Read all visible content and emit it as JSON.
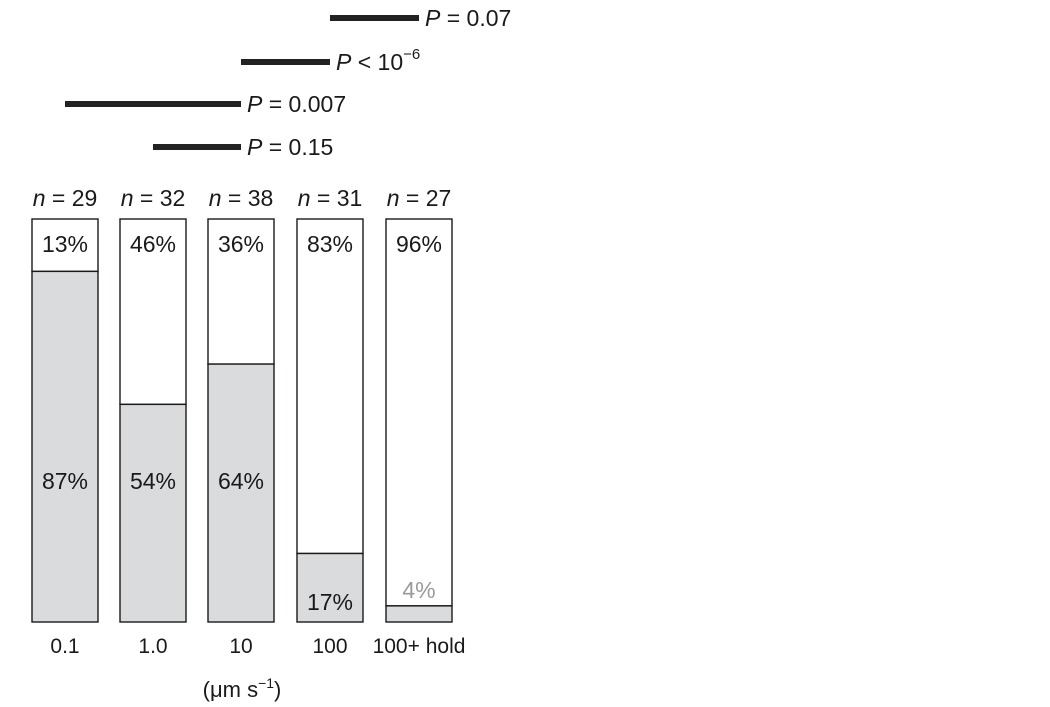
{
  "chart_data": {
    "type": "bar",
    "stacked": true,
    "normalized_percent": true,
    "categories": [
      "0.1",
      "1.0",
      "10",
      "100",
      "100+ hold"
    ],
    "n": [
      "n = 29",
      "n = 32",
      "n = 38",
      "n = 31",
      "n = 27"
    ],
    "series": [
      {
        "values": [
          87,
          54,
          64,
          17,
          4
        ],
        "labels": [
          "87%",
          "54%",
          "64%",
          "17%",
          "4%"
        ],
        "color": "#d9dbdd"
      },
      {
        "values": [
          13,
          46,
          36,
          83,
          96
        ],
        "labels": [
          "13%",
          "46%",
          "36%",
          "83%",
          "96%"
        ],
        "color": "#ffffff"
      }
    ],
    "xlabel_unit": "(μm s",
    "xlabel_exponent": "−1",
    "xlabel_close": ")",
    "comparisons": [
      {
        "from": 3,
        "to": 4,
        "p_prefix": "P",
        "p_text": " = 0.07",
        "p_exponent": ""
      },
      {
        "from": 2,
        "to": 3,
        "p_prefix": "P",
        "p_text": " < 10",
        "p_exponent": "−6"
      },
      {
        "from": 0,
        "to": 2,
        "p_prefix": "P",
        "p_text": " = 0.007",
        "p_exponent": ""
      },
      {
        "from": 1,
        "to": 2,
        "p_prefix": "P",
        "p_text": " = 0.15",
        "p_exponent": ""
      }
    ],
    "small_value_label_color": "#9a9a9a",
    "line_color": "#1a1a1a",
    "comparison_bar_color": "#222222"
  }
}
